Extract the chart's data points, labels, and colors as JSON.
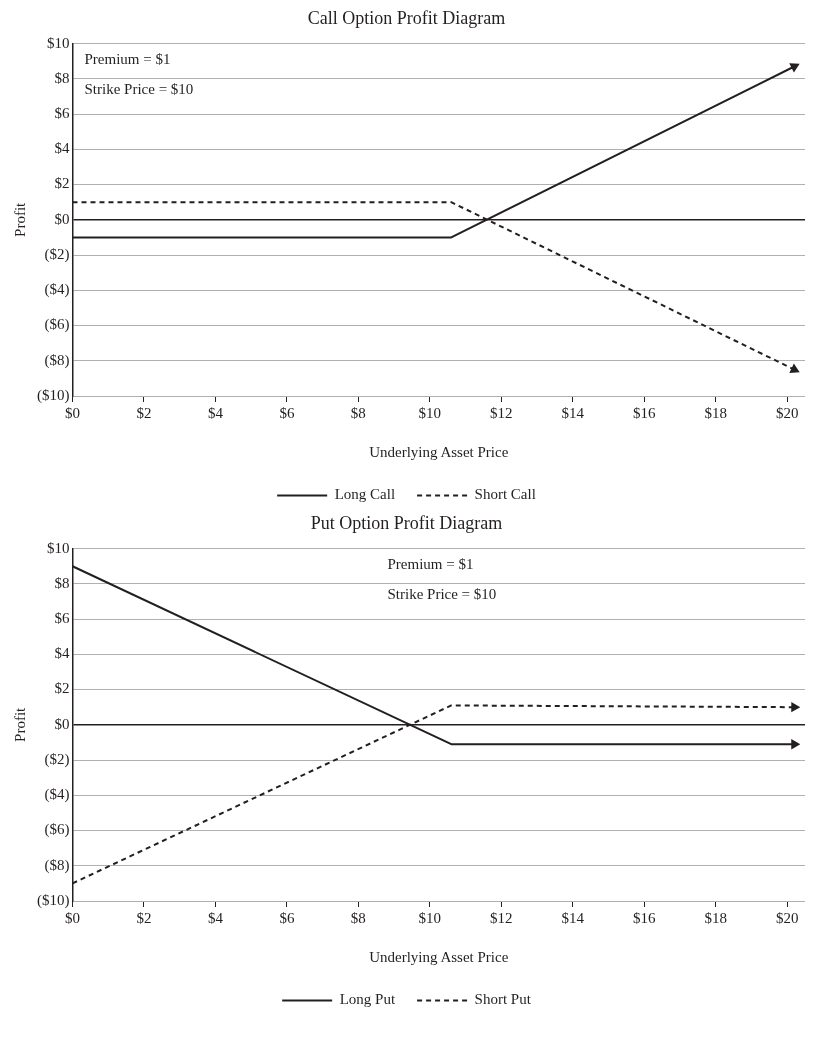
{
  "chart_data": [
    {
      "type": "line",
      "title": "Call Option Profit Diagram",
      "xlabel": "Underlying Asset Price",
      "ylabel": "Profit",
      "annotations": [
        "Premium = $1",
        "Strike Price = $10"
      ],
      "xlim": [
        0,
        20.5
      ],
      "xticks": [
        {
          "value": 0,
          "label": "$0"
        },
        {
          "value": 2,
          "label": "$2"
        },
        {
          "value": 4,
          "label": "$4"
        },
        {
          "value": 6,
          "label": "$6"
        },
        {
          "value": 8,
          "label": "$8"
        },
        {
          "value": 10,
          "label": "$10"
        },
        {
          "value": 12,
          "label": "$12"
        },
        {
          "value": 14,
          "label": "$14"
        },
        {
          "value": 16,
          "label": "$16"
        },
        {
          "value": 18,
          "label": "$18"
        },
        {
          "value": 20,
          "label": "$20"
        }
      ],
      "ylim": [
        -10,
        10
      ],
      "yticks": [
        {
          "value": -10,
          "label": "($10)"
        },
        {
          "value": -8,
          "label": "($8)"
        },
        {
          "value": -6,
          "label": "($6)"
        },
        {
          "value": -4,
          "label": "($4)"
        },
        {
          "value": -2,
          "label": "($2)"
        },
        {
          "value": 0,
          "label": "$0"
        },
        {
          "value": 2,
          "label": "$2"
        },
        {
          "value": 4,
          "label": "$4"
        },
        {
          "value": 6,
          "label": "$6"
        },
        {
          "value": 8,
          "label": "$8"
        },
        {
          "value": 10,
          "label": "$10"
        }
      ],
      "grid": "y",
      "legend": "bottom",
      "series": [
        {
          "name": "Long Call",
          "color": "#231f20",
          "line_style": "solid",
          "x": [
            0,
            10.6,
            20.2
          ],
          "values": [
            -1,
            -1,
            8.7
          ]
        },
        {
          "name": "Short Call",
          "color": "#231f20",
          "line_style": "dashed",
          "x": [
            0,
            10.6,
            20.2
          ],
          "values": [
            1,
            1,
            -8.5
          ]
        }
      ]
    },
    {
      "type": "line",
      "title": "Put Option Profit Diagram",
      "xlabel": "Underlying Asset Price",
      "ylabel": "Profit",
      "annotations": [
        "Premium = $1",
        "Strike Price = $10"
      ],
      "xlim": [
        0,
        20.5
      ],
      "xticks": [
        {
          "value": 0,
          "label": "$0"
        },
        {
          "value": 2,
          "label": "$2"
        },
        {
          "value": 4,
          "label": "$4"
        },
        {
          "value": 6,
          "label": "$6"
        },
        {
          "value": 8,
          "label": "$8"
        },
        {
          "value": 10,
          "label": "$10"
        },
        {
          "value": 12,
          "label": "$12"
        },
        {
          "value": 14,
          "label": "$14"
        },
        {
          "value": 16,
          "label": "$16"
        },
        {
          "value": 18,
          "label": "$18"
        },
        {
          "value": 20,
          "label": "$20"
        }
      ],
      "ylim": [
        -10,
        10
      ],
      "yticks": [
        {
          "value": -10,
          "label": "($10)"
        },
        {
          "value": -8,
          "label": "($8)"
        },
        {
          "value": -6,
          "label": "($6)"
        },
        {
          "value": -4,
          "label": "($4)"
        },
        {
          "value": -2,
          "label": "($2)"
        },
        {
          "value": 0,
          "label": "$0"
        },
        {
          "value": 2,
          "label": "$2"
        },
        {
          "value": 4,
          "label": "$4"
        },
        {
          "value": 6,
          "label": "$6"
        },
        {
          "value": 8,
          "label": "$8"
        },
        {
          "value": 10,
          "label": "$10"
        }
      ],
      "grid": "y",
      "legend": "bottom",
      "series": [
        {
          "name": "Long Put",
          "color": "#231f20",
          "line_style": "solid",
          "x": [
            0,
            10.6,
            20.2
          ],
          "values": [
            9,
            -1.1,
            -1.1
          ]
        },
        {
          "name": "Short Put",
          "color": "#231f20",
          "line_style": "dashed",
          "x": [
            0,
            10.6,
            20.2
          ],
          "values": [
            -9,
            1.1,
            1.0
          ]
        }
      ]
    }
  ]
}
